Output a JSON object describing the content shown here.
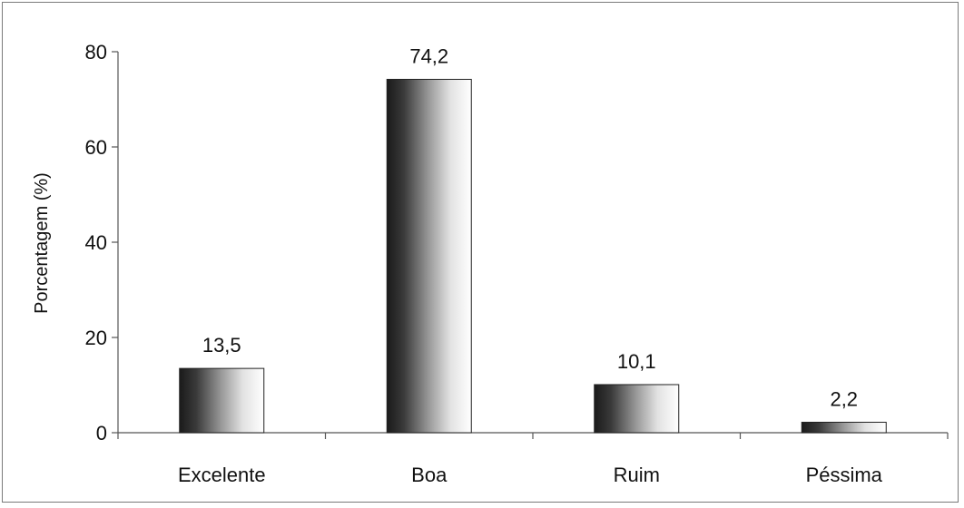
{
  "chart_data": {
    "type": "bar",
    "categories": [
      "Excelente",
      "Boa",
      "Ruim",
      "Péssima"
    ],
    "values": [
      13.5,
      74.2,
      10.1,
      2.2
    ],
    "data_labels": [
      "13,5",
      "74,2",
      "10,1",
      "2,2"
    ],
    "ylabel": "Porcentagem (%)",
    "xlabel": "",
    "ylim": [
      0,
      80
    ],
    "yticks": [
      0,
      20,
      40,
      60,
      80
    ],
    "ytick_labels": [
      "0",
      "20",
      "40",
      "60",
      "80"
    ],
    "grid": false,
    "legend": "none",
    "bar_fill": "gradient dark-to-white",
    "colors": {
      "bar_dark": "#1a1a1a",
      "bar_light": "#ffffff",
      "axis": "#555555"
    }
  }
}
